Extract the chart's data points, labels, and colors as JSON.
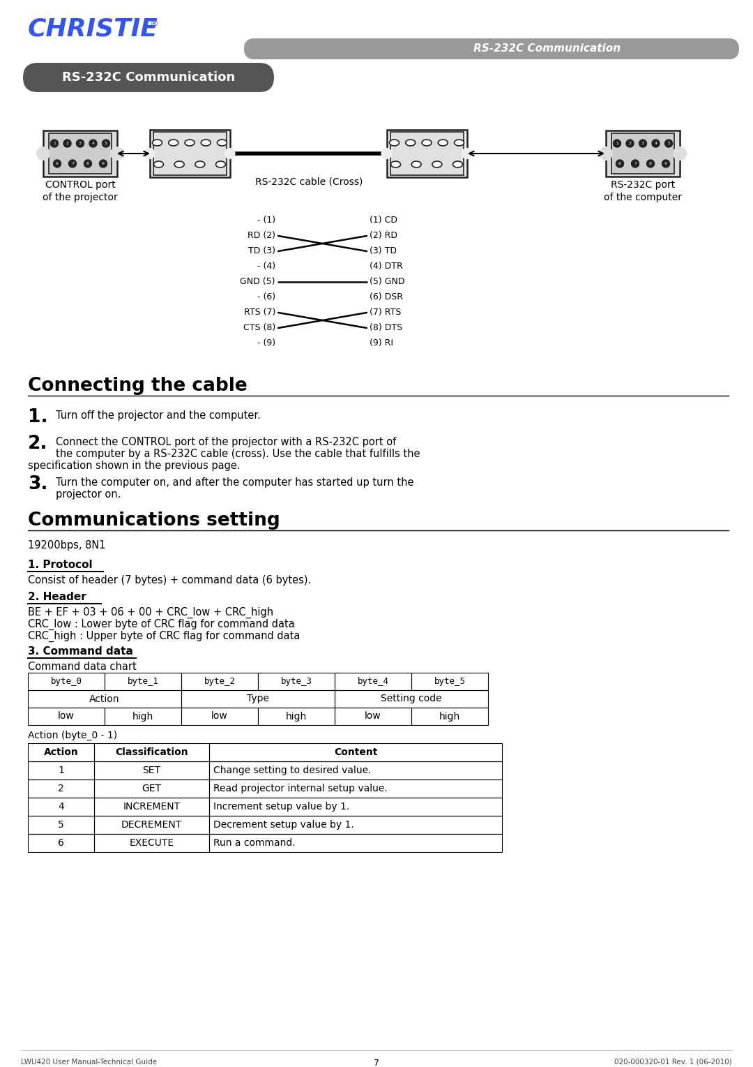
{
  "page_bg": "#ffffff",
  "header_bar_color": "#999999",
  "header_text": "RS-232C Communication",
  "header_text_color": "#ffffff",
  "christie_color": "#3355ee",
  "section_title_bg": "#555555",
  "section_title_text": "RS-232C Communication",
  "section_title_fg": "#ffffff",
  "connecting_cable_title": "Connecting the cable",
  "comms_setting_title": "Communications setting",
  "comms_baud": "19200bps, 8N1",
  "protocol_title": "1. Protocol",
  "protocol_text": "Consist of header (7 bytes) + command data (6 bytes).",
  "header_title": "2. Header",
  "header_formula": "BE + EF + 03 + 06 + 00 + CRC_low + CRC_high",
  "header_line2": "CRC_low : Lower byte of CRC flag for command data",
  "header_line3": "CRC_high : Upper byte of CRC flag for command data",
  "cmd_title": "3. Command data",
  "cmd_subtitle": "Command data chart",
  "step1": "Turn off the projector and the computer.",
  "step2a": "Connect the CONTROL port of the projector with a RS-232C port of",
  "step2b": "the computer by a RS-232C cable (cross). Use the cable that fulfills the",
  "step2c": "specification shown in the previous page.",
  "step3a": "Turn the computer on, and after the computer has started up turn the",
  "step3b": "projector on.",
  "cable_diagram_labels_left": [
    "- (1)",
    "RD (2)",
    "TD (3)",
    "- (4)",
    "GND (5)",
    "- (6)",
    "RTS (7)",
    "CTS (8)",
    "- (9)"
  ],
  "cable_diagram_labels_right": [
    "(1) CD",
    "(2) RD",
    "(3) TD",
    "(4) DTR",
    "(5) GND",
    "(6) DSR",
    "(7) RTS",
    "(8) DTS",
    "(9) RI"
  ],
  "cmd_table_headers": [
    "byte_0",
    "byte_1",
    "byte_2",
    "byte_3",
    "byte_4",
    "byte_5"
  ],
  "cmd_table_row2": [
    [
      "Action",
      0,
      2
    ],
    [
      "Type",
      2,
      4
    ],
    [
      "Setting code",
      4,
      6
    ]
  ],
  "cmd_table_row3": [
    "low",
    "high",
    "low",
    "high",
    "low",
    "high"
  ],
  "action_table_headers": [
    "Action",
    "Classification",
    "Content"
  ],
  "action_table_rows": [
    [
      "1",
      "SET",
      "Change setting to desired value."
    ],
    [
      "2",
      "GET",
      "Read projector internal setup value."
    ],
    [
      "4",
      "INCREMENT",
      "Increment setup value by 1."
    ],
    [
      "5",
      "DECREMENT",
      "Decrement setup value by 1."
    ],
    [
      "6",
      "EXECUTE",
      "Run a command."
    ]
  ],
  "footer_left": "LWU420 User Manual-Technical Guide",
  "footer_center": "7",
  "footer_right": "020-000320-01 Rev. 1 (06-2010)"
}
